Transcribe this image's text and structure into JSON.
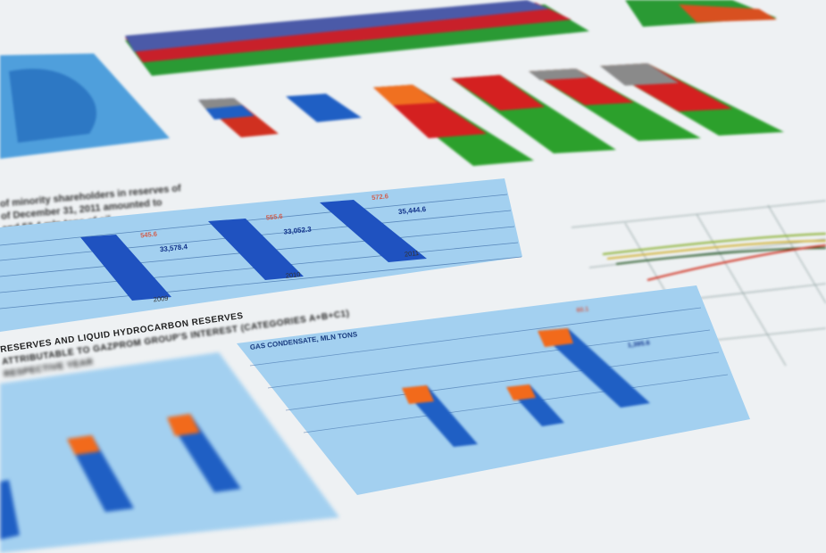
{
  "paragraph": {
    "line1": "of minority shareholders in reserves of",
    "line2": "of December 31, 2011 amounted to",
    "line3": "and 53.4 mln tons of oil."
  },
  "gas_chart": {
    "bars": [
      {
        "year": "2009",
        "main": "33,578.4",
        "minority": "545.6"
      },
      {
        "year": "2010",
        "main": "33,052.3",
        "minority": "555.6"
      },
      {
        "year": "2011",
        "main": "35,444.6",
        "minority": "572.6"
      }
    ]
  },
  "reserves_heading": {
    "line1": "RESERVES AND LIQUID HYDROCARBON RESERVES",
    "line2": "ATTRIBUTABLE TO GAZPROM GROUP'S INTEREST (CATEGORIES A+B+C1)",
    "line3": "RESPECTIVE YEAR"
  },
  "condensate_chart": {
    "title": "GAS CONDENSATE, MLN TONS",
    "top_value_2011": "60.1",
    "main_value_2011": "1,395.6"
  },
  "colors": {
    "paper": "#eef1f3",
    "panel_blue": "#9ccbed",
    "bar_blue": "#1f5fc4",
    "bar_orange": "#f26a1b",
    "red": "#d42020",
    "green": "#2ca02c",
    "gray": "#8a8a8a"
  }
}
